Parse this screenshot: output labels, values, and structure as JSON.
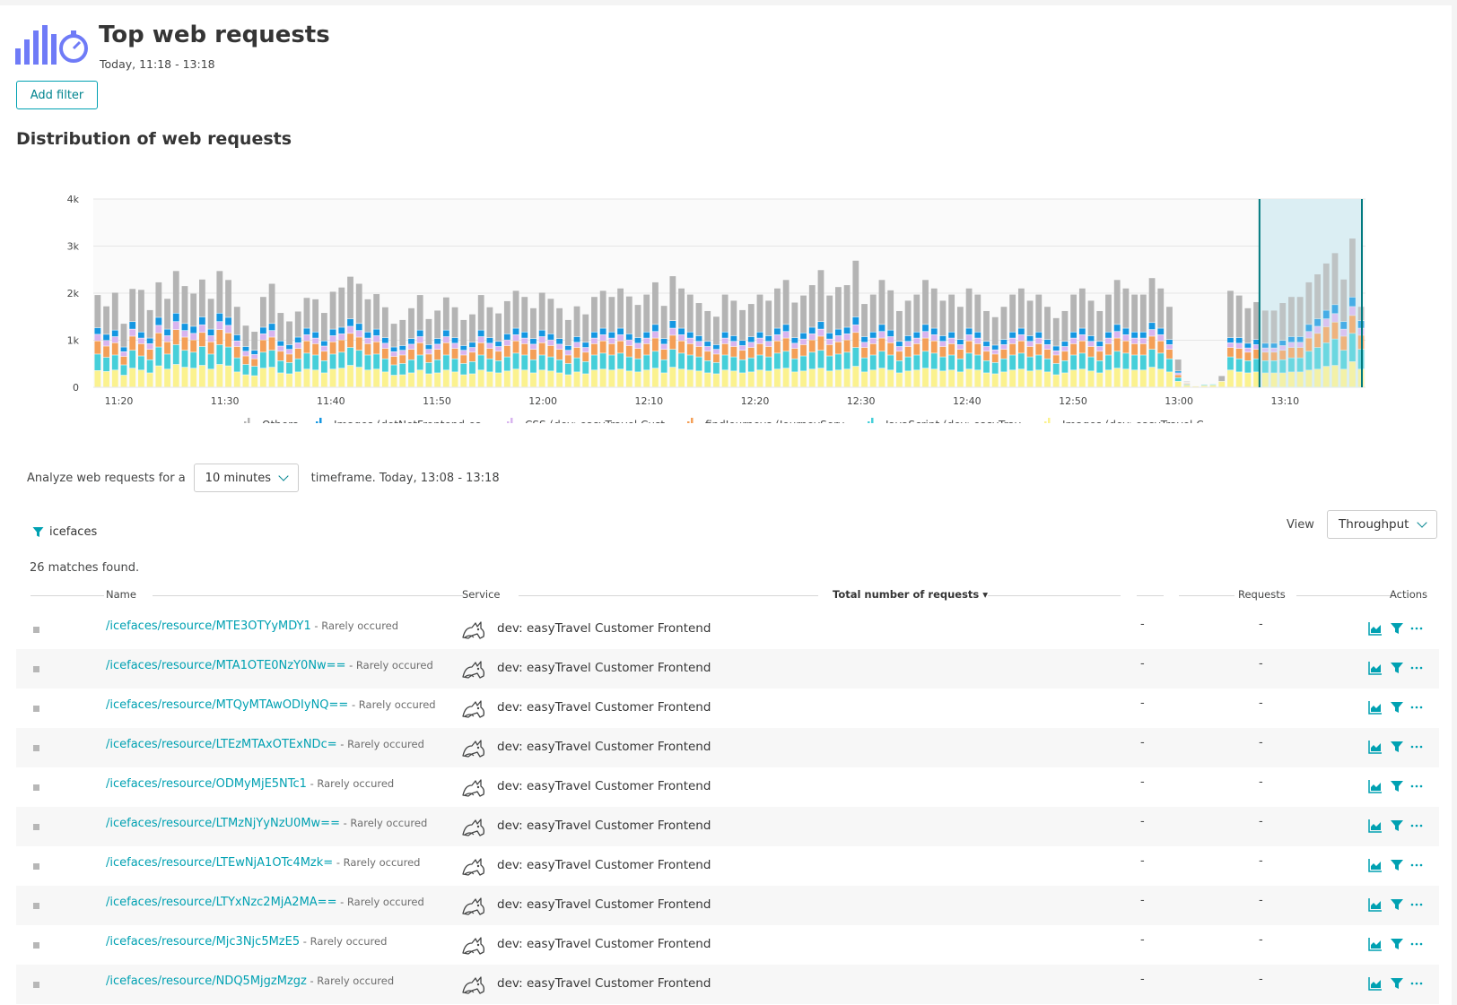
{
  "header": {
    "title": "Top web requests",
    "subtitle": "Today, 11:18 - 13:18",
    "icon": "bar-chart-stopwatch-icon",
    "accent_color": "#6f7bf7"
  },
  "add_filter_label": "Add filter",
  "section_title": "Distribution of web requests",
  "chart_data": {
    "type": "bar",
    "stacked": true,
    "title": "",
    "xlabel": "",
    "ylabel": "",
    "ylim": [
      0,
      4000
    ],
    "yticks": [
      "0",
      "1k",
      "2k",
      "3k",
      "4k"
    ],
    "xticks": [
      "11:20",
      "11:30",
      "11:40",
      "11:50",
      "12:00",
      "12:10",
      "12:20",
      "12:30",
      "12:40",
      "12:50",
      "13:00",
      "13:10"
    ],
    "x_start": "11:18",
    "x_end": "13:18",
    "interval_minutes": 1,
    "grid": true,
    "legend_position": "bottom",
    "selection": {
      "from": "13:08",
      "to": "13:18",
      "color": "#dbeef3",
      "border": "#00797f"
    },
    "colors": {
      "Others": "#b4b4b4",
      "Images (dotNetFrontend-ea...": "#1497e2",
      "CSS (dev: easyTravel Cust...": "#d8b4ef",
      "findJourneys (JourneyServ...": "#f49f57",
      "JavaScript (dev: easyTrav...": "#46cfd9",
      "Images (dev: easyTravel C...": "#fbf28f"
    },
    "series": [
      {
        "name": "Images (dev: easyTravel C...",
        "values": [
          350,
          330,
          360,
          250,
          400,
          360,
          300,
          450,
          380,
          480,
          420,
          400,
          460,
          380,
          480,
          450,
          320,
          260,
          240,
          400,
          420,
          300,
          280,
          320,
          380,
          360,
          300,
          380,
          400,
          460,
          420,
          360,
          380,
          320,
          250,
          260,
          300,
          360,
          280,
          300,
          360,
          320,
          260,
          280,
          360,
          320,
          300,
          340,
          380,
          360,
          300,
          360,
          340,
          300,
          260,
          320,
          280,
          360,
          380,
          360,
          380,
          340,
          320,
          360,
          400,
          300,
          420,
          380,
          360,
          340,
          300,
          280,
          360,
          340,
          300,
          320,
          360,
          340,
          380,
          400,
          320,
          340,
          380,
          400,
          340,
          360,
          380,
          440,
          320,
          360,
          400,
          360,
          300,
          340,
          360,
          400,
          380,
          340,
          360,
          320,
          380,
          360,
          300,
          280,
          320,
          360,
          380,
          340,
          360,
          320,
          260,
          300,
          360,
          380,
          340,
          300,
          360,
          400,
          380,
          360,
          360,
          420,
          380,
          320,
          120,
          40,
          20,
          30,
          40,
          120,
          360,
          320,
          300,
          320,
          300,
          300,
          300,
          320,
          320,
          360,
          380,
          440,
          460,
          380,
          540,
          380
        ]
      },
      {
        "name": "JavaScript (dev: easyTrav...",
        "values": [
          350,
          300,
          320,
          220,
          380,
          300,
          280,
          400,
          320,
          420,
          360,
          340,
          400,
          320,
          420,
          400,
          300,
          220,
          200,
          340,
          360,
          260,
          240,
          280,
          340,
          320,
          260,
          320,
          340,
          380,
          360,
          320,
          320,
          280,
          220,
          240,
          280,
          320,
          240,
          280,
          320,
          280,
          240,
          260,
          320,
          280,
          260,
          300,
          340,
          320,
          280,
          320,
          300,
          280,
          240,
          300,
          260,
          320,
          340,
          320,
          340,
          300,
          280,
          320,
          360,
          280,
          380,
          340,
          320,
          300,
          260,
          240,
          320,
          300,
          280,
          300,
          320,
          300,
          340,
          360,
          280,
          320,
          360,
          380,
          320,
          340,
          360,
          400,
          300,
          320,
          360,
          320,
          260,
          300,
          320,
          360,
          340,
          300,
          320,
          280,
          340,
          320,
          260,
          240,
          280,
          320,
          340,
          300,
          320,
          280,
          240,
          260,
          320,
          340,
          300,
          260,
          320,
          360,
          340,
          320,
          320,
          380,
          340,
          280,
          80,
          20,
          10,
          20,
          20,
          0,
          280,
          280,
          260,
          280,
          260,
          260,
          280,
          300,
          300,
          400,
          460,
          500,
          560,
          400,
          600,
          420
        ]
      },
      {
        "name": "findJourneys (JourneyServ...",
        "values": [
          280,
          240,
          260,
          180,
          300,
          260,
          220,
          300,
          260,
          320,
          280,
          260,
          300,
          260,
          320,
          300,
          240,
          180,
          160,
          260,
          280,
          200,
          180,
          220,
          260,
          240,
          200,
          260,
          260,
          300,
          280,
          240,
          260,
          220,
          180,
          180,
          220,
          260,
          180,
          220,
          260,
          220,
          180,
          200,
          260,
          220,
          200,
          240,
          260,
          240,
          220,
          260,
          240,
          220,
          180,
          220,
          200,
          240,
          260,
          240,
          260,
          240,
          220,
          240,
          280,
          220,
          300,
          260,
          240,
          220,
          200,
          180,
          240,
          220,
          200,
          220,
          240,
          220,
          260,
          280,
          220,
          240,
          260,
          300,
          240,
          260,
          260,
          320,
          220,
          240,
          280,
          260,
          200,
          220,
          240,
          280,
          260,
          220,
          240,
          200,
          260,
          240,
          200,
          180,
          200,
          240,
          260,
          220,
          240,
          200,
          180,
          200,
          240,
          260,
          220,
          200,
          240,
          280,
          260,
          240,
          240,
          280,
          260,
          200,
          60,
          20,
          10,
          10,
          10,
          0,
          200,
          220,
          180,
          200,
          180,
          180,
          200,
          220,
          220,
          280,
          300,
          340,
          360,
          300,
          380,
          300
        ]
      },
      {
        "name": "CSS (dev: easyTravel Cust...",
        "values": [
          140,
          120,
          130,
          100,
          150,
          120,
          120,
          160,
          130,
          170,
          140,
          140,
          160,
          130,
          170,
          160,
          120,
          100,
          90,
          130,
          140,
          110,
          100,
          120,
          130,
          120,
          110,
          130,
          130,
          150,
          140,
          120,
          130,
          110,
          100,
          100,
          110,
          130,
          100,
          110,
          130,
          110,
          100,
          100,
          130,
          110,
          100,
          120,
          130,
          120,
          110,
          130,
          120,
          110,
          100,
          110,
          100,
          120,
          130,
          120,
          130,
          120,
          110,
          120,
          140,
          110,
          150,
          130,
          120,
          110,
          100,
          100,
          120,
          110,
          100,
          110,
          120,
          110,
          130,
          140,
          110,
          120,
          130,
          150,
          120,
          130,
          130,
          160,
          110,
          120,
          140,
          130,
          100,
          110,
          120,
          140,
          130,
          110,
          120,
          100,
          130,
          120,
          100,
          90,
          100,
          120,
          130,
          110,
          120,
          100,
          90,
          100,
          120,
          130,
          110,
          100,
          120,
          140,
          130,
          120,
          120,
          140,
          130,
          100,
          40,
          10,
          0,
          0,
          0,
          0,
          100,
          110,
          90,
          100,
          90,
          90,
          100,
          110,
          110,
          140,
          150,
          170,
          180,
          150,
          190,
          150
        ]
      },
      {
        "name": "Images (dotNetFrontend-ea...",
        "values": [
          140,
          130,
          140,
          100,
          160,
          130,
          120,
          170,
          140,
          180,
          150,
          150,
          170,
          140,
          180,
          170,
          130,
          100,
          90,
          140,
          150,
          110,
          100,
          120,
          140,
          130,
          110,
          140,
          140,
          160,
          150,
          130,
          140,
          120,
          100,
          100,
          120,
          140,
          100,
          120,
          140,
          120,
          100,
          110,
          140,
          120,
          110,
          130,
          140,
          130,
          120,
          140,
          130,
          120,
          100,
          120,
          110,
          130,
          140,
          130,
          140,
          130,
          120,
          130,
          150,
          120,
          160,
          140,
          130,
          120,
          110,
          100,
          130,
          120,
          110,
          120,
          130,
          120,
          140,
          150,
          120,
          130,
          140,
          160,
          130,
          140,
          140,
          170,
          120,
          130,
          150,
          140,
          110,
          120,
          130,
          150,
          140,
          120,
          130,
          110,
          140,
          130,
          110,
          100,
          110,
          130,
          140,
          120,
          130,
          110,
          100,
          110,
          130,
          140,
          120,
          110,
          130,
          150,
          140,
          130,
          130,
          150,
          140,
          110,
          40,
          10,
          0,
          0,
          0,
          0,
          110,
          120,
          100,
          110,
          100,
          100,
          110,
          120,
          120,
          150,
          160,
          180,
          190,
          160,
          200,
          160
        ]
      },
      {
        "name": "Others",
        "values": [
          700,
          600,
          800,
          500,
          700,
          900,
          600,
          750,
          650,
          900,
          800,
          700,
          800,
          650,
          900,
          800,
          600,
          450,
          400,
          650,
          850,
          600,
          500,
          550,
          650,
          700,
          600,
          800,
          850,
          900,
          850,
          700,
          750,
          650,
          500,
          550,
          650,
          750,
          550,
          600,
          700,
          650,
          550,
          600,
          750,
          650,
          600,
          700,
          800,
          750,
          650,
          800,
          750,
          650,
          550,
          650,
          600,
          750,
          800,
          750,
          850,
          800,
          700,
          800,
          900,
          700,
          950,
          850,
          800,
          700,
          650,
          600,
          800,
          750,
          650,
          700,
          800,
          750,
          850,
          950,
          750,
          800,
          900,
          1100,
          800,
          900,
          900,
          1200,
          700,
          800,
          950,
          850,
          650,
          750,
          800,
          950,
          850,
          750,
          800,
          700,
          850,
          800,
          650,
          600,
          700,
          800,
          850,
          750,
          800,
          700,
          600,
          650,
          800,
          850,
          750,
          650,
          800,
          950,
          850,
          800,
          800,
          950,
          850,
          700,
          250,
          20,
          10,
          10,
          10,
          120,
          1000,
          900,
          750,
          800,
          700,
          700,
          800,
          850,
          850,
          900,
          950,
          1000,
          1100,
          900,
          1250,
          300
        ]
      }
    ]
  },
  "analyze": {
    "prefix": "Analyze web requests for a",
    "timeframe_value": "10 minutes",
    "suffix": "timeframe. Today, 13:08 - 13:18"
  },
  "active_filter": "icefaces",
  "view": {
    "label": "View",
    "value": "Throughput"
  },
  "matches_text": "26 matches found.",
  "table": {
    "columns": {
      "name": "Name",
      "service": "Service",
      "total": "Total number of requests ▾",
      "requests": "Requests",
      "actions": "Actions"
    },
    "rows": [
      {
        "name": "/icefaces/resource/MTE3OTYyMDY1",
        "note": " - Rarely occured",
        "service": "dev: easyTravel Customer Frontend",
        "col1": "-",
        "col2": "-"
      },
      {
        "name": "/icefaces/resource/MTA1OTE0NzY0Nw==",
        "note": " - Rarely occured",
        "service": "dev: easyTravel Customer Frontend",
        "col1": "-",
        "col2": "-"
      },
      {
        "name": "/icefaces/resource/MTQyMTAwODIyNQ==",
        "note": " - Rarely occured",
        "service": "dev: easyTravel Customer Frontend",
        "col1": "-",
        "col2": "-"
      },
      {
        "name": "/icefaces/resource/LTEzMTAxOTExNDc=",
        "note": " - Rarely occured",
        "service": "dev: easyTravel Customer Frontend",
        "col1": "-",
        "col2": "-"
      },
      {
        "name": "/icefaces/resource/ODMyMjE5NTc1",
        "note": " - Rarely occured",
        "service": "dev: easyTravel Customer Frontend",
        "col1": "-",
        "col2": "-"
      },
      {
        "name": "/icefaces/resource/LTMzNjYyNzU0Mw==",
        "note": " - Rarely occured",
        "service": "dev: easyTravel Customer Frontend",
        "col1": "-",
        "col2": "-"
      },
      {
        "name": "/icefaces/resource/LTEwNjA1OTc4Mzk=",
        "note": " - Rarely occured",
        "service": "dev: easyTravel Customer Frontend",
        "col1": "-",
        "col2": "-"
      },
      {
        "name": "/icefaces/resource/LTYxNzc2MjA2MA==",
        "note": " - Rarely occured",
        "service": "dev: easyTravel Customer Frontend",
        "col1": "-",
        "col2": "-"
      },
      {
        "name": "/icefaces/resource/Mjc3Njc5MzE5",
        "note": " - Rarely occured",
        "service": "dev: easyTravel Customer Frontend",
        "col1": "-",
        "col2": "-"
      },
      {
        "name": "/icefaces/resource/NDQ5MjgzMzgz",
        "note": " - Rarely occured",
        "service": "dev: easyTravel Customer Frontend",
        "col1": "-",
        "col2": "-"
      }
    ]
  }
}
